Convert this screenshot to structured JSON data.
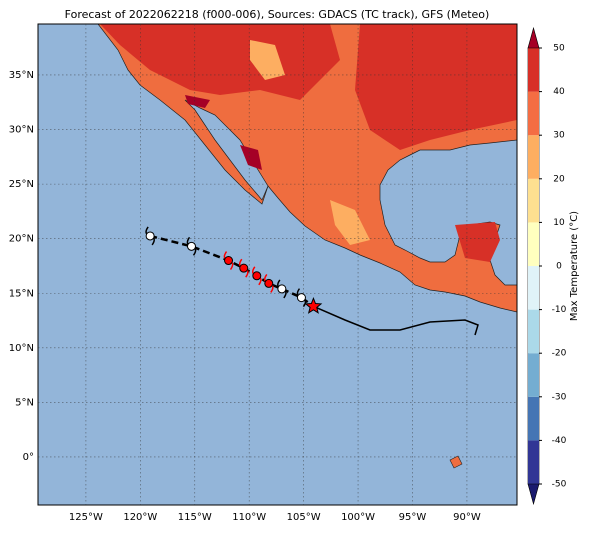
{
  "title": "Forecast of 2022062218 (f000-006), Sources: GDACS (TC track), GFS (Meteo)",
  "map": {
    "xlim": [
      -129.4,
      -85.4
    ],
    "ylim": [
      -4.4,
      39.67
    ],
    "xticks": [
      {
        "value": -125,
        "label": "125°W"
      },
      {
        "value": -120,
        "label": "120°W"
      },
      {
        "value": -115,
        "label": "115°W"
      },
      {
        "value": -110,
        "label": "110°W"
      },
      {
        "value": -105,
        "label": "105°W"
      },
      {
        "value": -100,
        "label": "100°W"
      },
      {
        "value": -95,
        "label": "95°W"
      },
      {
        "value": -90,
        "label": "90°W"
      }
    ],
    "yticks": [
      {
        "value": 0,
        "label": "0°"
      },
      {
        "value": 5,
        "label": "5°N"
      },
      {
        "value": 10,
        "label": "10°N"
      },
      {
        "value": 15,
        "label": "15°N"
      },
      {
        "value": 20,
        "label": "20°N"
      },
      {
        "value": 25,
        "label": "25°N"
      },
      {
        "value": 30,
        "label": "30°N"
      },
      {
        "value": 35,
        "label": "35°N"
      }
    ],
    "grid": true,
    "track": {
      "lon": [
        -119.1,
        -115.3,
        -111.9,
        -110.5,
        -109.3,
        -108.2,
        -107.0,
        -105.2,
        -104.1
      ],
      "lat": [
        20.25,
        19.3,
        18.0,
        17.3,
        16.6,
        15.9,
        15.4,
        14.6,
        13.8
      ],
      "colors": [
        "#ffffff",
        "#ffffff",
        "#ff0000",
        "#ff0000",
        "#ff0000",
        "#ff0000",
        "#ffffff",
        "#ffffff",
        "#ff0000"
      ]
    }
  },
  "colorbar": {
    "label": "Max Temperature (°C)",
    "lim": [
      -50,
      50
    ],
    "ticks": [
      -50,
      -40,
      -30,
      -20,
      -10,
      0,
      10,
      20,
      30,
      40,
      50
    ],
    "colors": [
      "#313695",
      "#4575b4",
      "#74add1",
      "#abd9e9",
      "#e0f3f8",
      "#ffffbf",
      "#fee090",
      "#fdae61",
      "#f46d43",
      "#d73027"
    ],
    "extend_colors": [
      "#1a1a6e",
      "#a50026"
    ]
  }
}
